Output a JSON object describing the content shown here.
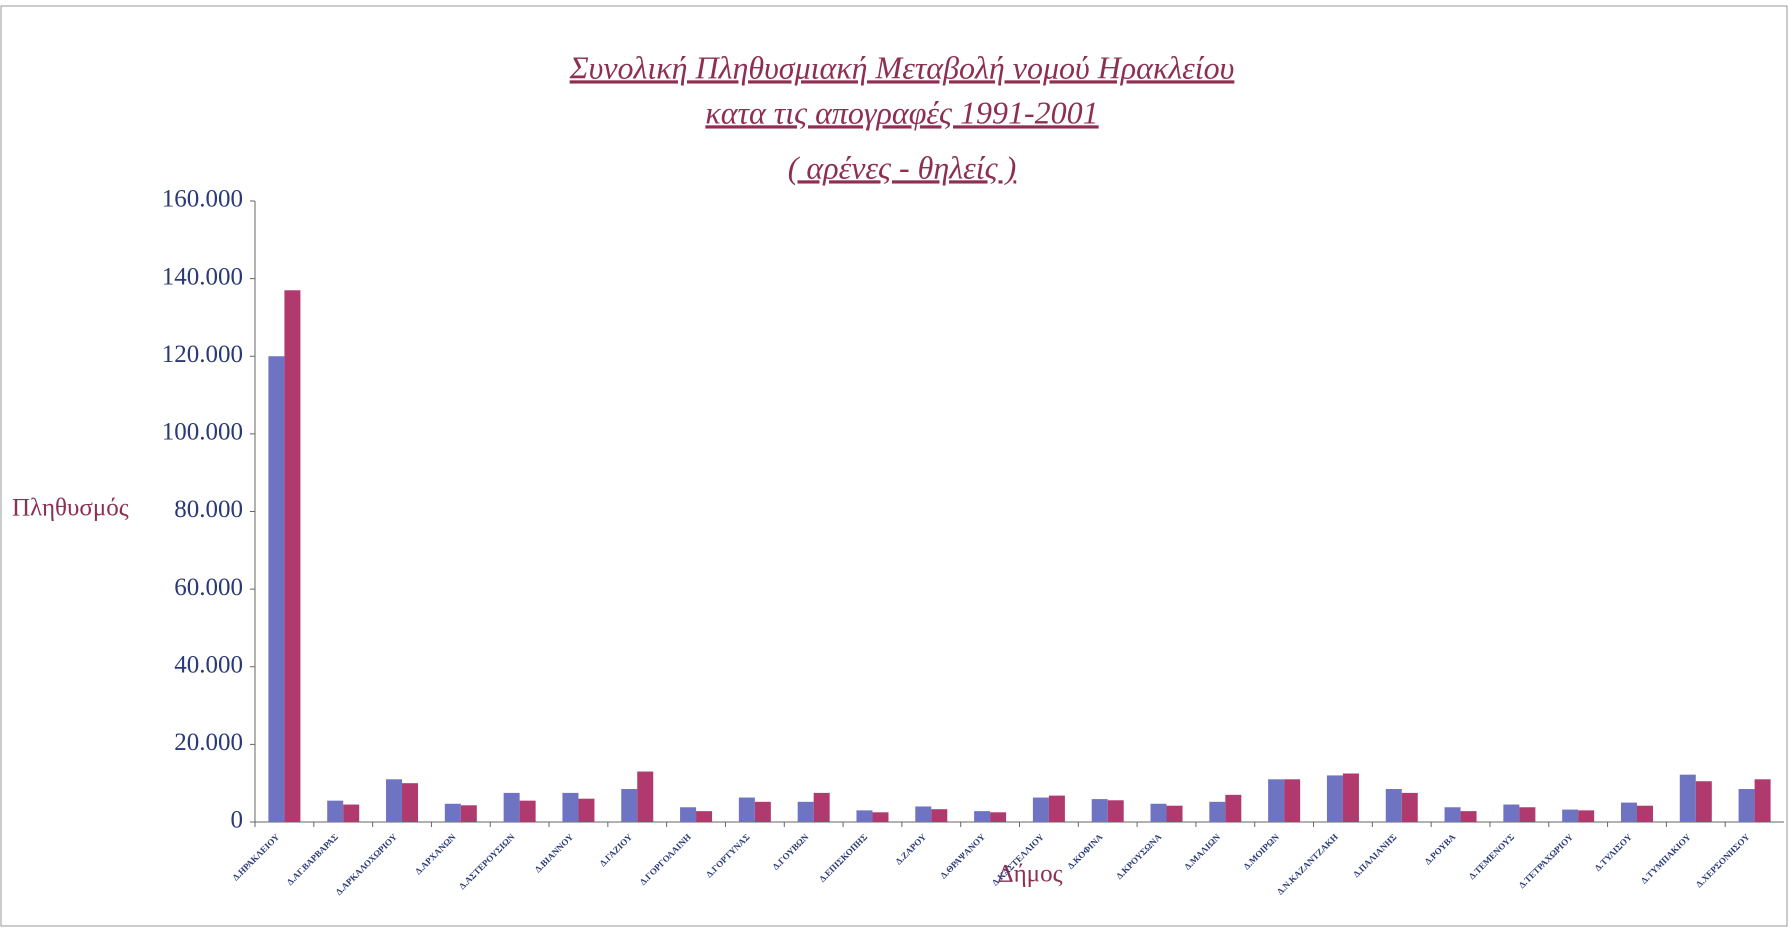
{
  "chart_data": {
    "type": "bar",
    "title": [
      "Συνολική Πληθυσμιακή Μεταβολή νομού Ηρακλείου",
      "κατα τις απογραφές 1991-2001",
      "( αρένες - θηλείς )"
    ],
    "y_label": "Πληθυσμός",
    "x_label": "Δήμος",
    "categories": [
      "Δ.ΗΡΑΚΛΕΙΟΥ",
      "Δ.ΑΓ.ΒΑΡΒΑΡΑΣ",
      "Δ.ΑΡΚΑΛΟΧΩΡΙΟΥ",
      "Δ.ΑΡΧΑΝΩΝ",
      "Δ.ΑΣΤΕΡΟΥΣΙΩΝ",
      "Δ.ΒΙΑΝΝΟΥ",
      "Δ.ΓΑΖΙΟΥ",
      "Δ.ΓΟΡΓΟΛΑΙΝΗ",
      "Δ.ΓΟΡΤΥΝΑΣ",
      "Δ.ΓΟΥΒΩΝ",
      "Δ.ΕΠΙΣΚΟΠΗΣ",
      "Δ.ΖΑΡΟΥ",
      "Δ.ΘΡΑΨΑΝΟΥ",
      "Δ.ΚΑΣΤΕΛΛΙΟΥ",
      "Δ.ΚΟΦΙΝΑ",
      "Δ.ΚΡΟΥΣΩΝΑ",
      "Δ.ΜΑΛΙΩΝ",
      "Δ.ΜΟΙΡΩΝ",
      "Δ.Ν.ΚΑΖΑΝΤΖΑΚΗ",
      "Δ.ΠΑΛΙΑΝΗΣ",
      "Δ.ΡΟΥΒΑ",
      "Δ.ΤΕΜΕΝΟΥΣ",
      "Δ.ΤΕΤΡΑΧΩΡΙΟΥ",
      "Δ.ΤΥΛΙΣΟΥ",
      "Δ.ΤΥΜΠΑΚΙΟΥ",
      "Δ.ΧΕΡΣΟΝΗΣΟΥ"
    ],
    "series": [
      {
        "color": "#6f74c2",
        "values": [
          120000,
          5500,
          11000,
          4700,
          7500,
          7500,
          8500,
          3800,
          6300,
          5200,
          3000,
          4000,
          2800,
          6300,
          5900,
          4700,
          5200,
          11000,
          12000,
          8500,
          3800,
          4500,
          3200,
          5000,
          12200,
          8500
        ]
      },
      {
        "color": "#b03a6e",
        "values": [
          137000,
          4500,
          10000,
          4300,
          5500,
          6000,
          13000,
          2800,
          5200,
          7500,
          2500,
          3300,
          2500,
          6800,
          5600,
          4200,
          7000,
          11000,
          12500,
          7500,
          2800,
          3800,
          3000,
          4200,
          10500,
          11000
        ]
      }
    ],
    "ylim": [
      0,
      160000
    ],
    "yticks": [
      {
        "value": 0,
        "label": "0"
      },
      {
        "value": 20000,
        "label": "20.000"
      },
      {
        "value": 40000,
        "label": "40.000"
      },
      {
        "value": 60000,
        "label": "60.000"
      },
      {
        "value": 80000,
        "label": "80.000"
      },
      {
        "value": 100000,
        "label": "100.000"
      },
      {
        "value": 120000,
        "label": "120.000"
      },
      {
        "value": 140000,
        "label": "140.000"
      },
      {
        "value": 160000,
        "label": "160.000"
      }
    ],
    "grid": false
  }
}
